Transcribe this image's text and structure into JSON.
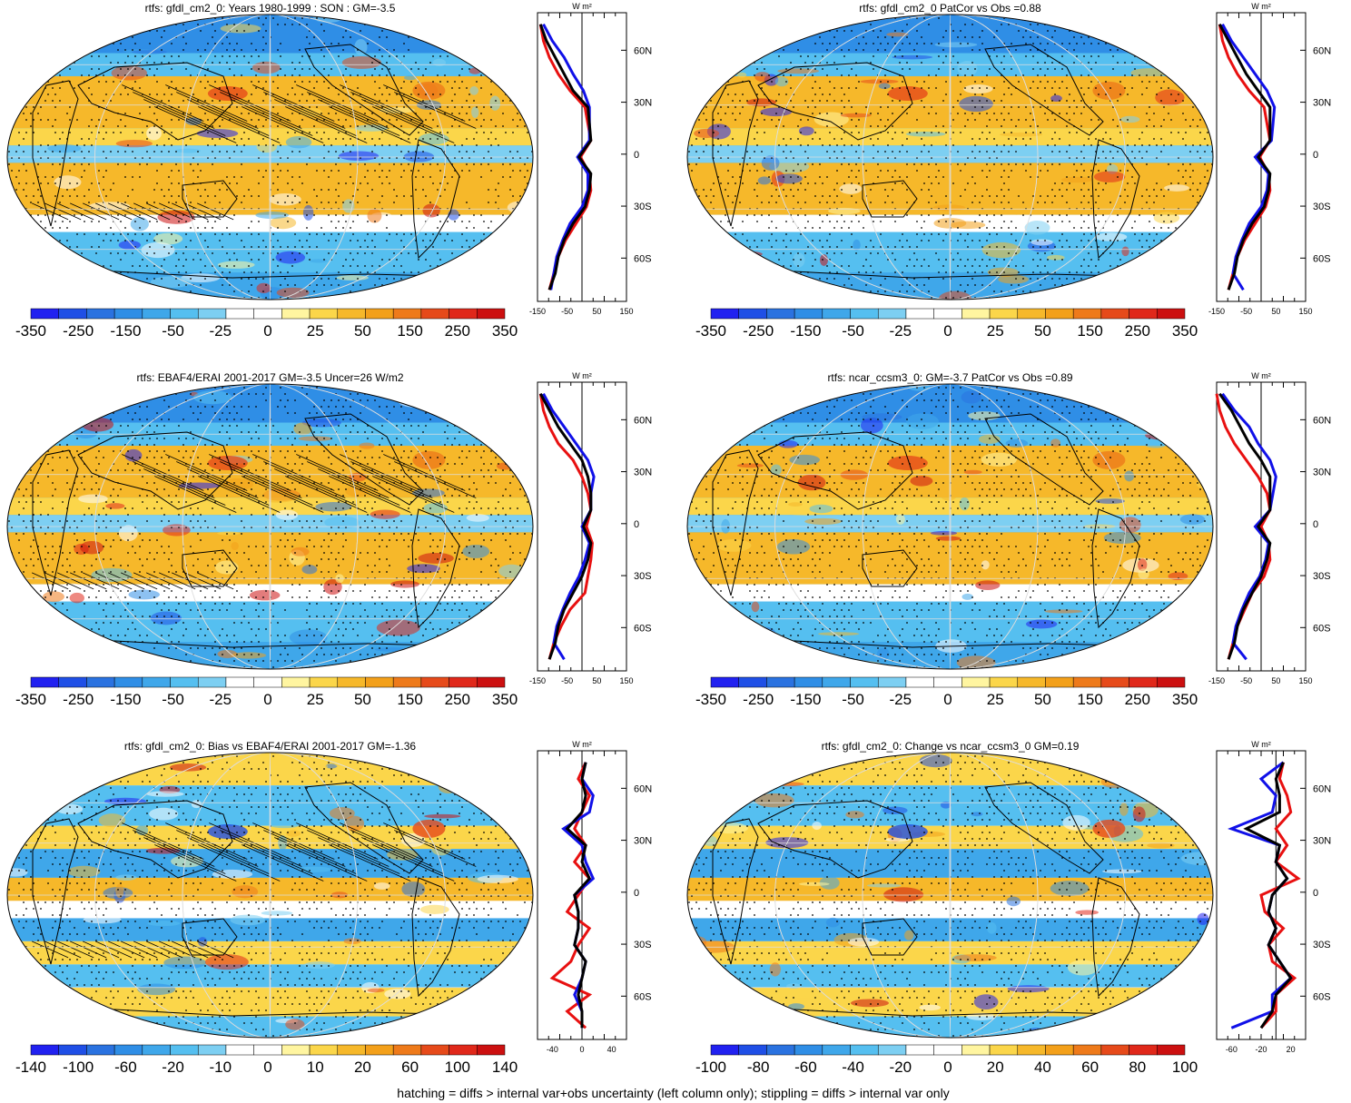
{
  "palette": [
    "#2121f0",
    "#1f4fe6",
    "#2a72e0",
    "#2f8ee6",
    "#3fa7ea",
    "#55bff0",
    "#7dcff2",
    "#ffffff",
    "#ffffff",
    "#fff5a0",
    "#fbd64a",
    "#f6b82a",
    "#f3a01a",
    "#ee7a1a",
    "#e64a1a",
    "#e0281a",
    "#cc1010"
  ],
  "colors": {
    "obs": "#e81010",
    "model": "#000000",
    "alt": "#1010e8"
  },
  "footer": "hatching = diffs > internal var+obs uncertainty (left column only); stippling = diffs > internal var only",
  "lat_labels": [
    "60N",
    "30N",
    "0",
    "30S",
    "60S"
  ],
  "unit_label": "W m²",
  "panels": [
    {
      "title": "rtfs: gfdl_cm2_0: Years 1980-1999 : SON : GM=-3.5",
      "cbar_labels": [
        "-350",
        "-250",
        "-150",
        "-50",
        "-25",
        "0",
        "25",
        "50",
        "150",
        "250",
        "350"
      ],
      "profile_ticks": [
        "-150",
        "-50",
        "50",
        "150"
      ],
      "hatch": true
    },
    {
      "title": "rtfs: gfdl_cm2_0 PatCor vs Obs =0.88",
      "cbar_labels": [
        "-350",
        "-250",
        "-150",
        "-50",
        "-25",
        "0",
        "25",
        "50",
        "150",
        "250",
        "350"
      ],
      "profile_ticks": [
        "-150",
        "-50",
        "50",
        "150"
      ],
      "hatch": false
    },
    {
      "title": "rtfs: EBAF4/ERAI 2001-2017 GM=-3.5 Uncer=26 W/m2",
      "cbar_labels": [
        "-350",
        "-250",
        "-150",
        "-50",
        "-25",
        "0",
        "25",
        "50",
        "150",
        "250",
        "350"
      ],
      "profile_ticks": [
        "-150",
        "-50",
        "50",
        "150"
      ],
      "hatch": true
    },
    {
      "title": "rtfs: ncar_ccsm3_0: GM=-3.7 PatCor vs Obs =0.89",
      "cbar_labels": [
        "-350",
        "-250",
        "-150",
        "-50",
        "-25",
        "0",
        "25",
        "50",
        "150",
        "250",
        "350"
      ],
      "profile_ticks": [
        "-150",
        "-50",
        "50",
        "150"
      ],
      "hatch": false
    },
    {
      "title": "rtfs: gfdl_cm2_0: Bias vs EBAF4/ERAI 2001-2017  GM=-1.36",
      "cbar_labels": [
        "-140",
        "-100",
        "-60",
        "-20",
        "-10",
        "0",
        "10",
        "20",
        "60",
        "100",
        "140"
      ],
      "profile_ticks": [
        "-40",
        "0",
        "40"
      ],
      "hatch": true
    },
    {
      "title": "rtfs: gfdl_cm2_0: Change vs ncar_ccsm3_0 GM=0.19",
      "cbar_labels": [
        "-100",
        "-80",
        "-60",
        "-40",
        "-20",
        "0",
        "20",
        "40",
        "60",
        "80",
        "100"
      ],
      "profile_ticks": [
        "-60",
        "-20",
        "20"
      ],
      "hatch": false
    }
  ],
  "chart_data": [
    {
      "type": "heatmap",
      "title": "rtfs: gfdl_cm2_0: Years 1980-1999 : SON : GM=-3.5",
      "colorbar_ticks": [
        -350,
        -250,
        -150,
        -50,
        -25,
        0,
        25,
        50,
        150,
        250,
        350
      ],
      "zonal_mean_profile": {
        "lat": [
          80,
          70,
          60,
          50,
          40,
          30,
          20,
          10,
          0,
          -10,
          -20,
          -30,
          -40,
          -50,
          -60,
          -70,
          -80
        ],
        "model": [
          -140,
          -120,
          -90,
          -60,
          -30,
          20,
          25,
          30,
          -10,
          30,
          25,
          10,
          -30,
          -60,
          -80,
          -90,
          -110
        ],
        "obs": [
          -140,
          -130,
          -110,
          -80,
          -40,
          10,
          20,
          30,
          -5,
          25,
          30,
          15,
          -20,
          -55,
          -80,
          -95,
          -110
        ],
        "alt": [
          -130,
          -100,
          -60,
          -30,
          5,
          25,
          25,
          25,
          -15,
          20,
          20,
          0,
          -40,
          -65,
          -85,
          -95,
          -105
        ]
      }
    },
    {
      "type": "heatmap",
      "title": "rtfs: gfdl_cm2_0 PatCor vs Obs =0.88",
      "colorbar_ticks": [
        -350,
        -250,
        -150,
        -50,
        -25,
        0,
        25,
        50,
        150,
        250,
        350
      ],
      "zonal_mean_profile": {
        "lat": [
          80,
          70,
          60,
          50,
          40,
          30,
          20,
          10,
          0,
          -10,
          -20,
          -30,
          -40,
          -50,
          -60,
          -70,
          -80
        ],
        "model": [
          -140,
          -110,
          -80,
          -50,
          -10,
          30,
          30,
          30,
          -10,
          30,
          25,
          10,
          -30,
          -60,
          -80,
          -90,
          -110
        ],
        "obs": [
          -140,
          -130,
          -110,
          -80,
          -40,
          10,
          20,
          30,
          -5,
          25,
          30,
          15,
          -20,
          -55,
          -80,
          -95,
          -110
        ],
        "alt": [
          -130,
          -100,
          -60,
          -20,
          20,
          45,
          40,
          35,
          -20,
          25,
          20,
          0,
          -40,
          -65,
          -85,
          -95,
          -60
        ]
      }
    },
    {
      "type": "heatmap",
      "title": "rtfs: EBAF4/ERAI 2001-2017 GM=-3.5 Uncer=26 W/m2",
      "colorbar_ticks": [
        -350,
        -250,
        -150,
        -50,
        -25,
        0,
        25,
        50,
        150,
        250,
        350
      ],
      "zonal_mean_profile": {
        "lat": [
          80,
          70,
          60,
          50,
          40,
          30,
          20,
          10,
          0,
          -10,
          -20,
          -30,
          -40,
          -50,
          -60,
          -70,
          -80
        ],
        "model": [
          -140,
          -110,
          -80,
          -40,
          0,
          20,
          30,
          30,
          5,
          30,
          20,
          0,
          -30,
          -60,
          -80,
          -90,
          -110
        ],
        "obs": [
          -140,
          -130,
          -110,
          -80,
          -30,
          0,
          20,
          30,
          15,
          35,
          30,
          20,
          10,
          -40,
          -70,
          -95,
          -110
        ],
        "alt": [
          -130,
          -100,
          -60,
          -20,
          20,
          40,
          30,
          30,
          0,
          25,
          10,
          -10,
          -40,
          -65,
          -85,
          -95,
          -60
        ]
      }
    },
    {
      "type": "heatmap",
      "title": "rtfs: ncar_ccsm3_0: GM=-3.7 PatCor vs Obs =0.89",
      "colorbar_ticks": [
        -350,
        -250,
        -150,
        -50,
        -25,
        0,
        25,
        50,
        150,
        250,
        350
      ],
      "zonal_mean_profile": {
        "lat": [
          80,
          70,
          60,
          50,
          40,
          30,
          20,
          10,
          0,
          -10,
          -20,
          -30,
          -40,
          -50,
          -60,
          -70,
          -80
        ],
        "model": [
          -140,
          -100,
          -70,
          -40,
          0,
          30,
          30,
          30,
          -10,
          30,
          20,
          0,
          -30,
          -60,
          -80,
          -90,
          -110
        ],
        "obs": [
          -150,
          -140,
          -120,
          -90,
          -50,
          -10,
          20,
          30,
          0,
          25,
          30,
          10,
          -30,
          -55,
          -80,
          -95,
          -110
        ],
        "alt": [
          -130,
          -90,
          -40,
          -10,
          30,
          50,
          40,
          30,
          -20,
          25,
          15,
          -5,
          -40,
          -65,
          -85,
          -95,
          -50
        ]
      }
    },
    {
      "type": "heatmap",
      "title": "rtfs: gfdl_cm2_0: Bias vs EBAF4/ERAI 2001-2017  GM=-1.36",
      "colorbar_ticks": [
        -140,
        -100,
        -60,
        -20,
        -10,
        0,
        10,
        20,
        60,
        100,
        140
      ],
      "zonal_mean_profile": {
        "lat": [
          80,
          70,
          60,
          50,
          40,
          30,
          20,
          10,
          0,
          -10,
          -20,
          -30,
          -40,
          -50,
          -60,
          -70,
          -80
        ],
        "model": [
          5,
          0,
          5,
          0,
          -20,
          5,
          0,
          10,
          -10,
          -5,
          -5,
          -10,
          5,
          0,
          -5,
          0,
          0
        ],
        "obs": [
          5,
          -5,
          10,
          0,
          -10,
          5,
          -10,
          10,
          -5,
          -20,
          10,
          -5,
          -15,
          -40,
          10,
          -20,
          5
        ],
        "alt": [
          5,
          0,
          15,
          10,
          -25,
          0,
          5,
          15,
          -10,
          -5,
          -5,
          -10,
          5,
          0,
          -10,
          0,
          0
        ]
      }
    },
    {
      "type": "heatmap",
      "title": "rtfs: gfdl_cm2_0: Change vs ncar_ccsm3_0 GM=0.19",
      "colorbar_ticks": [
        -100,
        -80,
        -60,
        -40,
        -20,
        0,
        20,
        40,
        60,
        80,
        100
      ],
      "zonal_mean_profile": {
        "lat": [
          80,
          70,
          60,
          50,
          40,
          30,
          20,
          10,
          0,
          -10,
          -20,
          -30,
          -40,
          -50,
          -60,
          -70,
          -80
        ],
        "model": [
          10,
          0,
          5,
          5,
          -40,
          5,
          0,
          15,
          -5,
          -10,
          0,
          -10,
          5,
          20,
          0,
          -5,
          -20
        ],
        "obs": [
          10,
          5,
          15,
          20,
          0,
          15,
          0,
          30,
          -20,
          -15,
          10,
          -10,
          -5,
          25,
          0,
          0,
          -20
        ],
        "alt": [
          10,
          -20,
          0,
          -5,
          -60,
          5,
          0,
          15,
          -5,
          -10,
          0,
          -10,
          5,
          20,
          -5,
          -5,
          -60
        ]
      }
    }
  ]
}
